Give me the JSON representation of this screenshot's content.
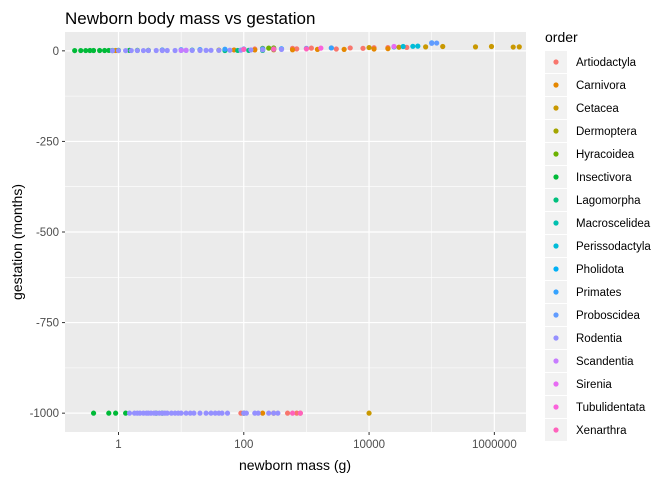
{
  "chart_data": {
    "type": "scatter",
    "title": "Newborn body mass vs gestation",
    "xlabel": "newborn mass (g)",
    "ylabel": "gestation (months)",
    "x_scale": "log10",
    "xlim": [
      0.14,
      3200000
    ],
    "ylim": [
      -1052,
      52
    ],
    "x_ticks": [
      1,
      100,
      10000,
      1000000
    ],
    "x_tick_labels": [
      "1",
      "100",
      "10000",
      "1000000"
    ],
    "y_ticks": [
      0,
      -250,
      -500,
      -750,
      -1000
    ],
    "y_tick_labels": [
      "0",
      "-250",
      "-500",
      "-750",
      "-1000"
    ],
    "grid": true,
    "legend": {
      "title": "order",
      "placement": "right",
      "entries": [
        {
          "name": "Artiodactyla",
          "color": "#F8766D"
        },
        {
          "name": "Carnivora",
          "color": "#E58700"
        },
        {
          "name": "Cetacea",
          "color": "#C99800"
        },
        {
          "name": "Dermoptera",
          "color": "#A3A500"
        },
        {
          "name": "Hyracoidea",
          "color": "#6BB100"
        },
        {
          "name": "Insectivora",
          "color": "#00BA38"
        },
        {
          "name": "Lagomorpha",
          "color": "#00BF7D"
        },
        {
          "name": "Macroscelidea",
          "color": "#00C0AF"
        },
        {
          "name": "Perissodactyla",
          "color": "#00BCD8"
        },
        {
          "name": "Pholidota",
          "color": "#00B0F6"
        },
        {
          "name": "Primates",
          "color": "#35A2FF"
        },
        {
          "name": "Proboscidea",
          "color": "#619CFF"
        },
        {
          "name": "Rodentia",
          "color": "#9590FF"
        },
        {
          "name": "Scandentia",
          "color": "#C77CFF"
        },
        {
          "name": "Sirenia",
          "color": "#E76BF3"
        },
        {
          "name": "Tubulidentata",
          "color": "#FA62DB"
        },
        {
          "name": "Xenarthra",
          "color": "#FF62BC"
        }
      ]
    },
    "series": [
      {
        "name": "Artiodactyla",
        "points": [
          [
            300,
            6
          ],
          [
            600,
            7
          ],
          [
            1200,
            7.5
          ],
          [
            2500,
            8
          ],
          [
            5000,
            8
          ],
          [
            8000,
            7
          ],
          [
            12000,
            8.5
          ],
          [
            20000,
            9
          ],
          [
            40000,
            9.5
          ],
          [
            3000,
            5
          ],
          [
            700,
            5.5
          ],
          [
            150,
            5
          ],
          [
            90,
            -1000
          ],
          [
            500,
            -1000
          ],
          [
            700,
            -1000
          ],
          [
            800,
            -1000
          ]
        ]
      },
      {
        "name": "Carnivora",
        "points": [
          [
            0.9,
            1
          ],
          [
            5,
            2
          ],
          [
            20,
            2
          ],
          [
            70,
            2.5
          ],
          [
            150,
            2.5
          ],
          [
            300,
            3
          ],
          [
            600,
            3
          ],
          [
            1500,
            4
          ],
          [
            4000,
            4
          ],
          [
            12000,
            5
          ],
          [
            20000,
            6
          ],
          [
            100,
            -1000
          ],
          [
            200,
            -1000
          ],
          [
            300,
            -1000
          ]
        ]
      },
      {
        "name": "Cetacea",
        "points": [
          [
            10000,
            9
          ],
          [
            30000,
            10
          ],
          [
            80000,
            11
          ],
          [
            150000,
            12
          ],
          [
            500000,
            11
          ],
          [
            900000,
            12
          ],
          [
            2000000,
            10.5
          ],
          [
            2500000,
            11
          ],
          [
            10000,
            -1000
          ]
        ]
      },
      {
        "name": "Dermoptera",
        "points": [
          [
            40,
            2
          ]
        ]
      },
      {
        "name": "Hyracoidea",
        "points": [
          [
            200,
            7
          ],
          [
            250,
            7.5
          ],
          [
            300,
            8
          ]
        ]
      },
      {
        "name": "Insectivora",
        "points": [
          [
            0.2,
            0.7
          ],
          [
            0.25,
            0.8
          ],
          [
            0.3,
            0.8
          ],
          [
            0.35,
            0.9
          ],
          [
            0.4,
            1
          ],
          [
            0.5,
            1
          ],
          [
            0.6,
            1
          ],
          [
            0.7,
            1.1
          ],
          [
            0.8,
            1
          ],
          [
            1,
            1.2
          ],
          [
            1.5,
            1.3
          ],
          [
            2,
            1.2
          ],
          [
            3,
            1.3
          ],
          [
            0.4,
            -1000
          ],
          [
            0.7,
            -1000
          ],
          [
            0.9,
            -1000
          ],
          [
            1.3,
            -1000
          ],
          [
            4,
            -1000
          ],
          [
            5,
            -1000
          ]
        ]
      },
      {
        "name": "Lagomorpha",
        "points": [
          [
            50,
            1
          ],
          [
            80,
            1.1
          ],
          [
            120,
            1.2
          ],
          [
            200,
            1.3
          ],
          [
            100,
            -1000
          ]
        ]
      },
      {
        "name": "Macroscelidea",
        "points": [
          [
            10,
            2
          ],
          [
            15,
            2.1
          ],
          [
            20,
            2.2
          ]
        ]
      },
      {
        "name": "Perissodactyla",
        "points": [
          [
            25000,
            11
          ],
          [
            35000,
            12
          ],
          [
            50000,
            12.5
          ],
          [
            60000,
            13
          ]
        ]
      },
      {
        "name": "Pholidota",
        "points": [
          [
            300,
            4.5
          ],
          [
            400,
            5
          ]
        ]
      },
      {
        "name": "Primates",
        "points": [
          [
            5,
            2.5
          ],
          [
            10,
            3
          ],
          [
            20,
            3.5
          ],
          [
            50,
            4.5
          ],
          [
            100,
            5
          ],
          [
            200,
            5.5
          ],
          [
            400,
            6
          ],
          [
            1000,
            7
          ],
          [
            2500,
            8
          ],
          [
            100000,
            22
          ]
        ]
      },
      {
        "name": "Proboscidea",
        "points": [
          [
            100000,
            21
          ],
          [
            120000,
            21.5
          ]
        ]
      },
      {
        "name": "Rodentia",
        "points": [
          [
            0.8,
            0.6
          ],
          [
            1,
            0.7
          ],
          [
            1.3,
            0.7
          ],
          [
            1.6,
            0.8
          ],
          [
            2,
            0.8
          ],
          [
            2.5,
            0.8
          ],
          [
            3,
            0.9
          ],
          [
            4,
            0.9
          ],
          [
            5,
            1
          ],
          [
            6,
            1
          ],
          [
            8,
            1
          ],
          [
            10,
            1.1
          ],
          [
            12,
            1.1
          ],
          [
            15,
            1.2
          ],
          [
            20,
            1.2
          ],
          [
            25,
            1.3
          ],
          [
            30,
            1.4
          ],
          [
            40,
            1.5
          ],
          [
            60,
            1.7
          ],
          [
            90,
            2
          ],
          [
            130,
            2.5
          ],
          [
            200,
            3
          ],
          [
            400,
            4
          ],
          [
            1.5,
            -1000
          ],
          [
            1.8,
            -1000
          ],
          [
            2,
            -1000
          ],
          [
            2.2,
            -1000
          ],
          [
            2.5,
            -1000
          ],
          [
            2.8,
            -1000
          ],
          [
            3,
            -1000
          ],
          [
            3.3,
            -1000
          ],
          [
            3.7,
            -1000
          ],
          [
            4,
            -1000
          ],
          [
            4.5,
            -1000
          ],
          [
            5,
            -1000
          ],
          [
            5.5,
            -1000
          ],
          [
            6,
            -1000
          ],
          [
            7,
            -1000
          ],
          [
            8,
            -1000
          ],
          [
            9,
            -1000
          ],
          [
            10,
            -1000
          ],
          [
            12,
            -1000
          ],
          [
            14,
            -1000
          ],
          [
            16,
            -1000
          ],
          [
            20,
            -1000
          ],
          [
            25,
            -1000
          ],
          [
            30,
            -1000
          ],
          [
            35,
            -1000
          ],
          [
            40,
            -1000
          ],
          [
            45,
            -1000
          ],
          [
            55,
            -1000
          ],
          [
            100,
            -1000
          ],
          [
            110,
            -1000
          ],
          [
            150,
            -1000
          ],
          [
            170,
            -1000
          ],
          [
            250,
            -1000
          ],
          [
            300,
            -1000
          ],
          [
            350,
            -1000
          ]
        ]
      },
      {
        "name": "Scandentia",
        "points": [
          [
            10,
            1.5
          ],
          [
            12,
            1.6
          ]
        ]
      },
      {
        "name": "Sirenia",
        "points": [
          [
            25000,
            12
          ]
        ]
      },
      {
        "name": "Tubulidentata",
        "points": [
          [
            1700,
            7.5
          ]
        ]
      },
      {
        "name": "Xenarthra",
        "points": [
          [
            100,
            4
          ],
          [
            300,
            5
          ],
          [
            1000,
            5.5
          ],
          [
            600,
            -1000
          ],
          [
            800,
            -1000
          ]
        ]
      }
    ]
  }
}
